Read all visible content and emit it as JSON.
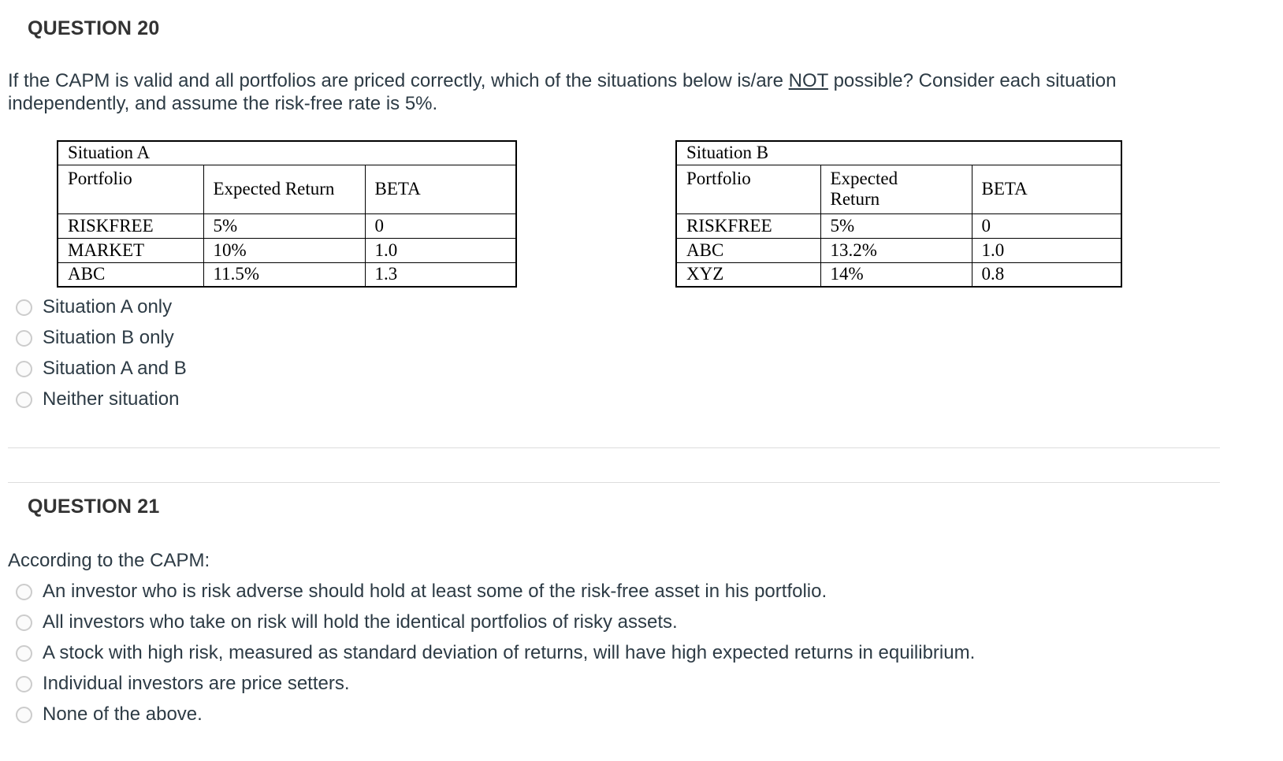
{
  "q20": {
    "title": "QUESTION 20",
    "prompt_before": "If the CAPM is valid and all portfolios are priced correctly, which of the situations below is/are ",
    "prompt_underlined": "NOT",
    "prompt_after": " possible? Consider each situation independently, and assume the risk-free rate is 5%.",
    "tableA": {
      "caption": "Situation A",
      "headers": [
        "Portfolio",
        "Expected Return",
        "BETA"
      ],
      "rows": [
        [
          "RISKFREE",
          "5%",
          "0"
        ],
        [
          "MARKET",
          "10%",
          "1.0"
        ],
        [
          "ABC",
          "11.5%",
          "1.3"
        ]
      ]
    },
    "tableB": {
      "caption": "Situation B",
      "headers": [
        "Portfolio",
        "Expected Return",
        "BETA"
      ],
      "rows": [
        [
          "RISKFREE",
          "5%",
          "0"
        ],
        [
          "ABC",
          "13.2%",
          "1.0"
        ],
        [
          "XYZ",
          "14%",
          "0.8"
        ]
      ]
    },
    "options": [
      "Situation A only",
      "Situation B only",
      "Situation A and B",
      "Neither situation"
    ]
  },
  "q21": {
    "title": "QUESTION 21",
    "prompt": "According to the CAPM:",
    "options": [
      "An investor who is risk adverse should hold at least some of the risk-free asset in his portfolio.",
      "All investors who take on risk will hold the identical portfolios of risky assets.",
      "A stock with high risk, measured as standard deviation of returns, will have high expected returns in equilibrium.",
      "Individual investors are price setters.",
      "None of the above."
    ]
  }
}
